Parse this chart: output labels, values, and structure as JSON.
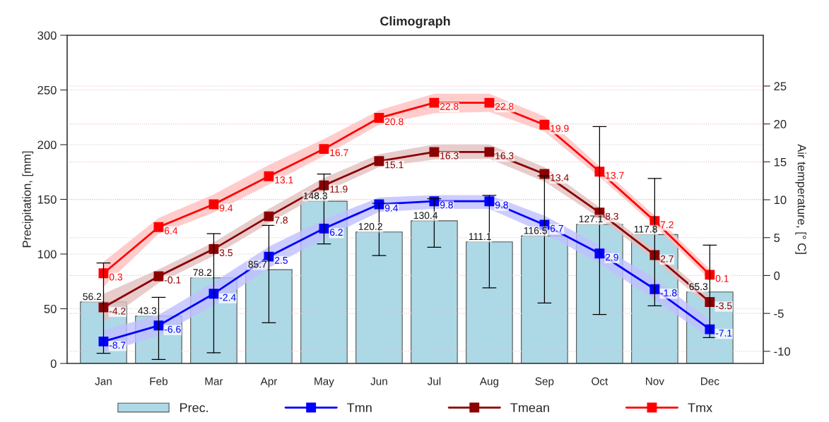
{
  "chart_data": {
    "type": "bar",
    "title": "Climograph",
    "ylabel": "Precipitation, [mm]",
    "y2label": "Air temperature, [° C]",
    "categories": [
      "Jan",
      "Feb",
      "Mar",
      "Apr",
      "May",
      "Jun",
      "Jul",
      "Aug",
      "Sep",
      "Oct",
      "Nov",
      "Dec"
    ],
    "series": [
      {
        "name": "Prec.",
        "color": "#add8e6",
        "values": [
          56.2,
          43.3,
          78.2,
          85.7,
          148.3,
          120.2,
          130.4,
          111.1,
          116.5,
          127.1,
          117.8,
          65.3
        ],
        "errors": [
          [
            9.3,
            91.8
          ],
          [
            3.7,
            60.4
          ],
          [
            9.7,
            118.6
          ],
          [
            37.1,
            126.2
          ],
          [
            109.3,
            173.2
          ],
          [
            98.6,
            146.4
          ],
          [
            106.2,
            150.5
          ],
          [
            69.1,
            153.6
          ],
          [
            55.3,
            171.6
          ],
          [
            44.8,
            216.5
          ],
          [
            52.6,
            169.1
          ],
          [
            23.7,
            108.2
          ]
        ]
      },
      {
        "name": "Tmn",
        "type": "line",
        "axis": "y2",
        "color": "#0000ff",
        "values": [
          -8.7,
          -6.6,
          -2.4,
          2.5,
          6.2,
          9.4,
          9.8,
          9.8,
          6.7,
          2.9,
          -1.8,
          -7.1
        ],
        "lower": [
          -10.2,
          -7.9,
          -3.9,
          1.0,
          4.9,
          8.4,
          8.8,
          8.8,
          5.6,
          1.6,
          -3.2,
          -8.2
        ],
        "upper": [
          -7.2,
          -5.2,
          -0.9,
          3.8,
          7.4,
          10.3,
          10.6,
          10.6,
          7.9,
          4.0,
          -0.4,
          -5.9
        ]
      },
      {
        "name": "Tmean",
        "type": "line",
        "axis": "y2",
        "color": "#8b0000",
        "values": [
          -4.2,
          -0.1,
          3.5,
          7.8,
          11.9,
          15.1,
          16.3,
          16.3,
          13.4,
          8.3,
          2.7,
          -3.5
        ],
        "lower": [
          -6.2,
          -1.0,
          2.6,
          6.9,
          11.0,
          14.3,
          15.3,
          15.4,
          12.4,
          7.6,
          2.0,
          -4.2
        ],
        "upper": [
          -2.4,
          0.8,
          4.4,
          8.8,
          12.9,
          16.0,
          17.3,
          17.3,
          14.3,
          9.0,
          3.4,
          -2.8
        ]
      },
      {
        "name": "Tmx",
        "type": "line",
        "axis": "y2",
        "color": "#ff0000",
        "values": [
          0.3,
          6.4,
          9.4,
          13.1,
          16.7,
          20.8,
          22.8,
          22.8,
          19.9,
          13.7,
          7.2,
          0.1
        ],
        "lower": [
          -1.5,
          5.5,
          8.3,
          12.0,
          15.8,
          19.9,
          21.4,
          21.6,
          19.0,
          13.0,
          6.6,
          -0.6
        ],
        "upper": [
          1.8,
          7.6,
          10.7,
          14.6,
          18.0,
          21.8,
          24.0,
          24.0,
          21.0,
          14.4,
          7.9,
          0.8
        ]
      }
    ],
    "ylim": [
      0,
      300
    ],
    "yticks": [
      0,
      50,
      100,
      150,
      200,
      250,
      300
    ],
    "y2lim": [
      -11.6,
      31.7
    ],
    "y2ticks": [
      -10,
      -5,
      0,
      5,
      10,
      15,
      20,
      25
    ],
    "grid": "y",
    "legend": "bottom",
    "marker": "square",
    "line_style": "solid",
    "data_labels": true
  }
}
